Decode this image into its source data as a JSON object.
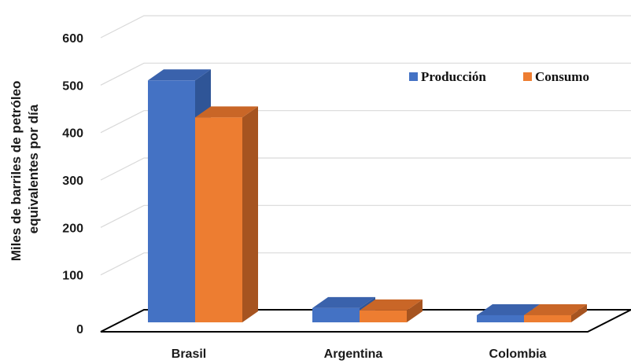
{
  "chart_data": {
    "type": "bar",
    "style": "3d-clustered-column",
    "categories": [
      "Brasil",
      "Argentina",
      "Colombia"
    ],
    "series": [
      {
        "name": "Producción",
        "values": [
          510,
          30,
          15
        ],
        "color": "#4472C4",
        "side_color": "#2F5597",
        "top_color": "#3A62AC"
      },
      {
        "name": "Consumo",
        "values": [
          432,
          25,
          15
        ],
        "color": "#ED7D31",
        "side_color": "#A65420",
        "top_color": "#C96627"
      }
    ],
    "ylabel": [
      "Miles de barriles de petróleo",
      "equivalentes por día"
    ],
    "xlabel": "",
    "ylim": [
      0,
      600
    ],
    "yticks": [
      0,
      100,
      200,
      300,
      400,
      500,
      600
    ],
    "grid": true,
    "legend_position": "top-right"
  }
}
